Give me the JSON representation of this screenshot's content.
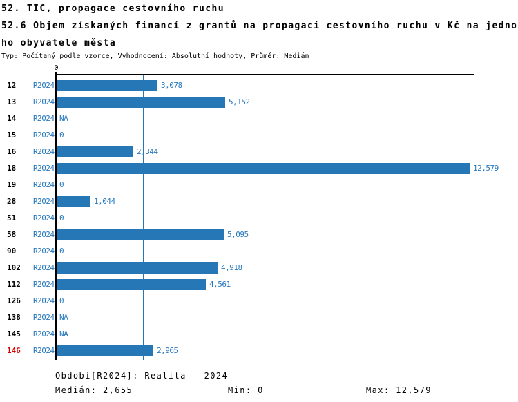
{
  "header": {
    "title": "52. TIC, propagace cestovního ruchu",
    "subtitle_line1": "52.6 Objem získaných financí z grantů na propagaci cestovního ruchu v Kč na jedno",
    "subtitle_line2": "ho obyvatele města",
    "meta": "Typ: Počítaný podle vzorce, Vyhodnocení: Absolutní hodnoty, Průměr: Medián"
  },
  "colors": {
    "bar": "#2577b5",
    "text_blue": "#2878be",
    "median_line": "#2577b5",
    "highlight_red": "#dd0000",
    "axis": "#000000"
  },
  "chart_data": {
    "type": "bar",
    "orientation": "horizontal",
    "title": "52.6 Objem získaných financí z grantů na propagaci cestovního ruchu v Kč na jednoho obyvatele města",
    "xlabel": "",
    "ylabel": "",
    "xlim": [
      0,
      12700
    ],
    "grid": false,
    "legend_position": "none",
    "axis_zero_label": "0",
    "categories": [
      "12",
      "13",
      "14",
      "15",
      "16",
      "18",
      "19",
      "28",
      "51",
      "58",
      "90",
      "102",
      "112",
      "126",
      "138",
      "145",
      "146"
    ],
    "series": [
      {
        "name": "R2024",
        "values": [
          3078,
          5152,
          null,
          0,
          2344,
          12579,
          0,
          1044,
          0,
          5095,
          0,
          4918,
          4561,
          0,
          null,
          null,
          2965
        ]
      }
    ],
    "value_labels": [
      "3,078",
      "5,152",
      "NA",
      "0",
      "2,344",
      "12,579",
      "0",
      "1,044",
      "0",
      "5,095",
      "0",
      "4,918",
      "4,561",
      "0",
      "NA",
      "NA",
      "2,965"
    ],
    "period_label": "R2024",
    "highlighted_category": "146",
    "median_value": 2655,
    "min_value": 0,
    "max_value": 12579
  },
  "footer": {
    "period": "Období[R2024]: Realita – 2024",
    "median": "Medián: 2,655",
    "min": "Min: 0",
    "max": "Max: 12,579"
  }
}
